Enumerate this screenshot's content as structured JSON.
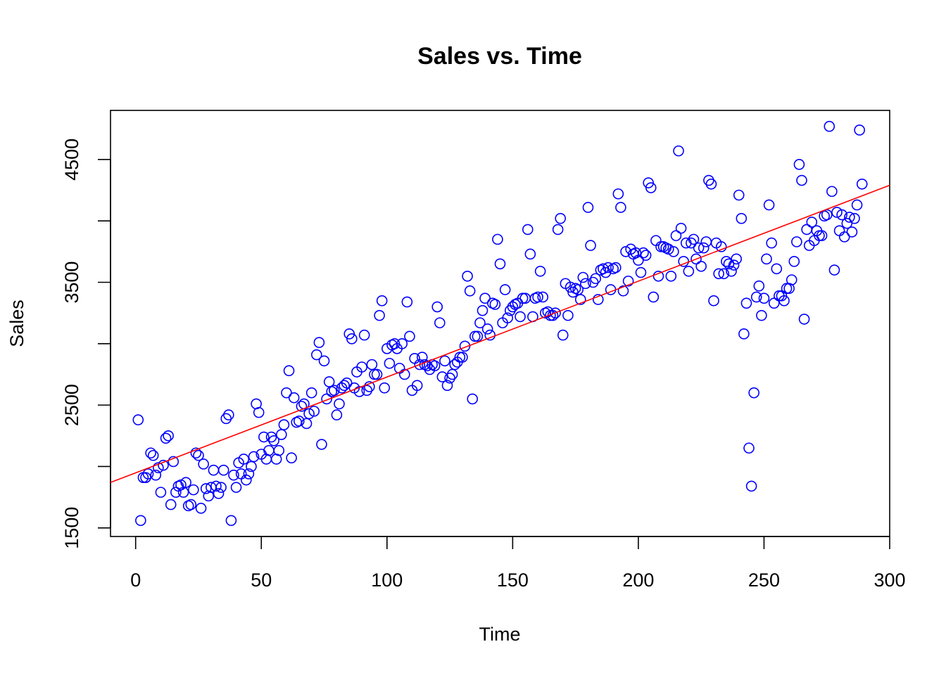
{
  "chart_data": {
    "type": "scatter",
    "title": "Sales vs. Time",
    "xlabel": "Time",
    "ylabel": "Sales",
    "xlim": [
      -10,
      300
    ],
    "ylim": [
      1430,
      4900
    ],
    "xticks": [
      0,
      50,
      100,
      150,
      200,
      250,
      300
    ],
    "yticks": [
      1500,
      2500,
      3500,
      4500
    ],
    "yticks_labeled": [
      1500,
      2500,
      3500,
      4500
    ],
    "yticks_unlabeled": [
      2000,
      3000,
      4000
    ],
    "grid": false,
    "legend": "none",
    "point_color": "#0000ff",
    "fit_line_color": "#ff0000",
    "fit_line": {
      "x": [
        -10,
        300
      ],
      "y": [
        1870,
        4290
      ]
    },
    "points": [
      [
        1,
        2380
      ],
      [
        2,
        1560
      ],
      [
        3,
        1910
      ],
      [
        4,
        1910
      ],
      [
        5,
        1940
      ],
      [
        6,
        2110
      ],
      [
        7,
        2090
      ],
      [
        8,
        1930
      ],
      [
        9,
        1990
      ],
      [
        10,
        1790
      ],
      [
        11,
        2010
      ],
      [
        12,
        2230
      ],
      [
        13,
        2250
      ],
      [
        14,
        1690
      ],
      [
        15,
        2040
      ],
      [
        16,
        1790
      ],
      [
        17,
        1840
      ],
      [
        18,
        1850
      ],
      [
        19,
        1790
      ],
      [
        20,
        1870
      ],
      [
        21,
        1680
      ],
      [
        22,
        1690
      ],
      [
        23,
        1810
      ],
      [
        24,
        2110
      ],
      [
        25,
        2090
      ],
      [
        26,
        1660
      ],
      [
        27,
        2020
      ],
      [
        28,
        1820
      ],
      [
        29,
        1760
      ],
      [
        30,
        1830
      ],
      [
        31,
        1970
      ],
      [
        32,
        1840
      ],
      [
        33,
        1780
      ],
      [
        34,
        1830
      ],
      [
        35,
        1970
      ],
      [
        36,
        2390
      ],
      [
        37,
        2420
      ],
      [
        38,
        1560
      ],
      [
        39,
        1930
      ],
      [
        40,
        1830
      ],
      [
        41,
        2030
      ],
      [
        42,
        1940
      ],
      [
        43,
        2060
      ],
      [
        44,
        1890
      ],
      [
        45,
        1940
      ],
      [
        46,
        2000
      ],
      [
        47,
        2080
      ],
      [
        48,
        2510
      ],
      [
        49,
        2440
      ],
      [
        50,
        2100
      ],
      [
        51,
        2240
      ],
      [
        52,
        2060
      ],
      [
        53,
        2130
      ],
      [
        54,
        2240
      ],
      [
        55,
        2210
      ],
      [
        56,
        2060
      ],
      [
        57,
        2130
      ],
      [
        58,
        2260
      ],
      [
        59,
        2340
      ],
      [
        60,
        2600
      ],
      [
        61,
        2780
      ],
      [
        62,
        2070
      ],
      [
        63,
        2560
      ],
      [
        64,
        2360
      ],
      [
        65,
        2370
      ],
      [
        66,
        2490
      ],
      [
        67,
        2510
      ],
      [
        68,
        2350
      ],
      [
        69,
        2430
      ],
      [
        70,
        2600
      ],
      [
        71,
        2450
      ],
      [
        72,
        2910
      ],
      [
        73,
        3010
      ],
      [
        74,
        2180
      ],
      [
        75,
        2860
      ],
      [
        76,
        2550
      ],
      [
        77,
        2690
      ],
      [
        78,
        2610
      ],
      [
        79,
        2620
      ],
      [
        80,
        2420
      ],
      [
        81,
        2510
      ],
      [
        82,
        2640
      ],
      [
        83,
        2660
      ],
      [
        84,
        2680
      ],
      [
        85,
        3080
      ],
      [
        86,
        3040
      ],
      [
        87,
        2640
      ],
      [
        88,
        2770
      ],
      [
        89,
        2610
      ],
      [
        90,
        2810
      ],
      [
        91,
        3070
      ],
      [
        92,
        2620
      ],
      [
        93,
        2650
      ],
      [
        94,
        2830
      ],
      [
        95,
        2750
      ],
      [
        96,
        2750
      ],
      [
        97,
        3230
      ],
      [
        98,
        3350
      ],
      [
        99,
        2640
      ],
      [
        100,
        2960
      ],
      [
        101,
        2840
      ],
      [
        102,
        2990
      ],
      [
        103,
        3000
      ],
      [
        104,
        2960
      ],
      [
        105,
        2800
      ],
      [
        106,
        3000
      ],
      [
        107,
        2750
      ],
      [
        108,
        3340
      ],
      [
        109,
        3060
      ],
      [
        110,
        2620
      ],
      [
        111,
        2880
      ],
      [
        112,
        2660
      ],
      [
        113,
        2830
      ],
      [
        114,
        2890
      ],
      [
        115,
        2830
      ],
      [
        116,
        2820
      ],
      [
        117,
        2790
      ],
      [
        118,
        2830
      ],
      [
        119,
        2820
      ],
      [
        120,
        3300
      ],
      [
        121,
        3170
      ],
      [
        122,
        2730
      ],
      [
        123,
        2860
      ],
      [
        124,
        2660
      ],
      [
        125,
        2720
      ],
      [
        126,
        2750
      ],
      [
        127,
        2830
      ],
      [
        128,
        2850
      ],
      [
        129,
        2890
      ],
      [
        130,
        2890
      ],
      [
        131,
        2980
      ],
      [
        132,
        3550
      ],
      [
        133,
        3430
      ],
      [
        134,
        2550
      ],
      [
        135,
        3060
      ],
      [
        136,
        3060
      ],
      [
        137,
        3170
      ],
      [
        138,
        3270
      ],
      [
        139,
        3370
      ],
      [
        140,
        3120
      ],
      [
        141,
        3070
      ],
      [
        142,
        3330
      ],
      [
        143,
        3320
      ],
      [
        144,
        3850
      ],
      [
        145,
        3650
      ],
      [
        146,
        3170
      ],
      [
        147,
        3440
      ],
      [
        148,
        3210
      ],
      [
        149,
        3270
      ],
      [
        150,
        3300
      ],
      [
        151,
        3320
      ],
      [
        152,
        3330
      ],
      [
        153,
        3220
      ],
      [
        154,
        3370
      ],
      [
        155,
        3370
      ],
      [
        156,
        3930
      ],
      [
        157,
        3730
      ],
      [
        158,
        3220
      ],
      [
        159,
        3370
      ],
      [
        160,
        3380
      ],
      [
        161,
        3590
      ],
      [
        162,
        3380
      ],
      [
        163,
        3250
      ],
      [
        164,
        3260
      ],
      [
        165,
        3230
      ],
      [
        166,
        3230
      ],
      [
        167,
        3250
      ],
      [
        168,
        3930
      ],
      [
        169,
        4020
      ],
      [
        170,
        3070
      ],
      [
        171,
        3490
      ],
      [
        172,
        3230
      ],
      [
        173,
        3460
      ],
      [
        174,
        3420
      ],
      [
        175,
        3450
      ],
      [
        176,
        3440
      ],
      [
        177,
        3360
      ],
      [
        178,
        3540
      ],
      [
        179,
        3490
      ],
      [
        180,
        4110
      ],
      [
        181,
        3800
      ],
      [
        182,
        3500
      ],
      [
        183,
        3530
      ],
      [
        184,
        3360
      ],
      [
        185,
        3600
      ],
      [
        186,
        3610
      ],
      [
        187,
        3580
      ],
      [
        188,
        3620
      ],
      [
        189,
        3440
      ],
      [
        190,
        3610
      ],
      [
        191,
        3620
      ],
      [
        192,
        4220
      ],
      [
        193,
        4110
      ],
      [
        194,
        3430
      ],
      [
        195,
        3750
      ],
      [
        196,
        3510
      ],
      [
        197,
        3770
      ],
      [
        198,
        3730
      ],
      [
        199,
        3740
      ],
      [
        200,
        3680
      ],
      [
        201,
        3580
      ],
      [
        202,
        3740
      ],
      [
        203,
        3720
      ],
      [
        204,
        4310
      ],
      [
        205,
        4270
      ],
      [
        206,
        3380
      ],
      [
        207,
        3840
      ],
      [
        208,
        3550
      ],
      [
        209,
        3790
      ],
      [
        210,
        3790
      ],
      [
        211,
        3780
      ],
      [
        212,
        3770
      ],
      [
        213,
        3550
      ],
      [
        214,
        3750
      ],
      [
        215,
        3880
      ],
      [
        216,
        4570
      ],
      [
        217,
        3940
      ],
      [
        218,
        3670
      ],
      [
        219,
        3820
      ],
      [
        220,
        3590
      ],
      [
        221,
        3820
      ],
      [
        222,
        3850
      ],
      [
        223,
        3690
      ],
      [
        224,
        3780
      ],
      [
        225,
        3630
      ],
      [
        226,
        3780
      ],
      [
        227,
        3830
      ],
      [
        228,
        4330
      ],
      [
        229,
        4300
      ],
      [
        230,
        3350
      ],
      [
        231,
        3820
      ],
      [
        232,
        3570
      ],
      [
        233,
        3790
      ],
      [
        234,
        3570
      ],
      [
        235,
        3670
      ],
      [
        236,
        3650
      ],
      [
        237,
        3590
      ],
      [
        238,
        3640
      ],
      [
        239,
        3690
      ],
      [
        240,
        4210
      ],
      [
        241,
        4020
      ],
      [
        242,
        3080
      ],
      [
        243,
        3330
      ],
      [
        244,
        2150
      ],
      [
        245,
        1840
      ],
      [
        246,
        2600
      ],
      [
        247,
        3380
      ],
      [
        248,
        3470
      ],
      [
        249,
        3230
      ],
      [
        250,
        3370
      ],
      [
        251,
        3690
      ],
      [
        252,
        4130
      ],
      [
        253,
        3820
      ],
      [
        254,
        3330
      ],
      [
        255,
        3610
      ],
      [
        256,
        3390
      ],
      [
        257,
        3390
      ],
      [
        258,
        3350
      ],
      [
        259,
        3450
      ],
      [
        260,
        3450
      ],
      [
        261,
        3520
      ],
      [
        262,
        3670
      ],
      [
        263,
        3830
      ],
      [
        264,
        4460
      ],
      [
        265,
        4330
      ],
      [
        266,
        3200
      ],
      [
        267,
        3930
      ],
      [
        268,
        3800
      ],
      [
        269,
        3990
      ],
      [
        270,
        3840
      ],
      [
        271,
        3920
      ],
      [
        272,
        3880
      ],
      [
        273,
        3880
      ],
      [
        274,
        4040
      ],
      [
        275,
        4050
      ],
      [
        276,
        4770
      ],
      [
        277,
        4240
      ],
      [
        278,
        3600
      ],
      [
        279,
        4070
      ],
      [
        280,
        3920
      ],
      [
        281,
        4050
      ],
      [
        282,
        3870
      ],
      [
        283,
        3980
      ],
      [
        284,
        4030
      ],
      [
        285,
        3910
      ],
      [
        286,
        4020
      ],
      [
        287,
        4130
      ],
      [
        288,
        4740
      ],
      [
        289,
        4300
      ]
    ]
  }
}
